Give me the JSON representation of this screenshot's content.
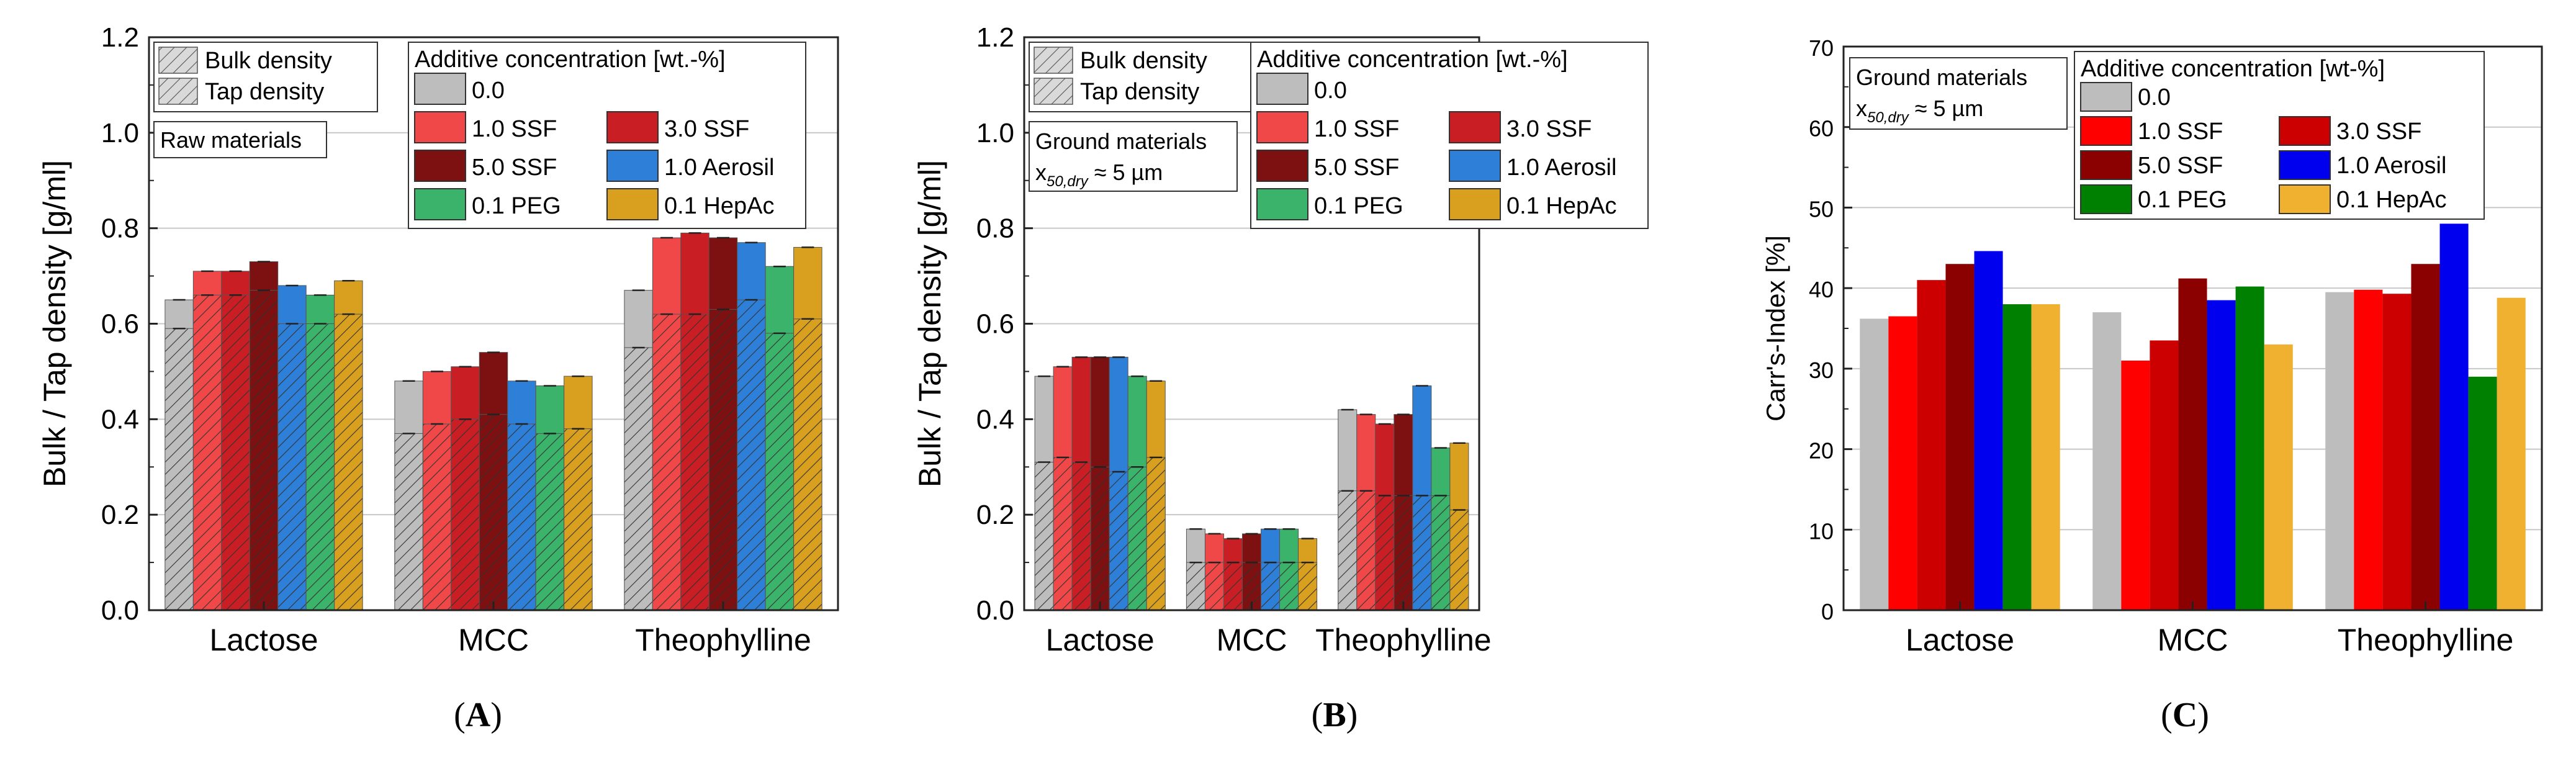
{
  "colors": {
    "c0": "#bdbdbd",
    "c1": "#f04848",
    "c2": "#c81e24",
    "c3": "#7d1010",
    "c4": "#2e7fd8",
    "c5": "#3bb36b",
    "c6": "#d8a01e",
    "C": [
      "#bdbdbd",
      "#ff0000",
      "#cc0000",
      "#8b0000",
      "#0000ee",
      "#008000",
      "#f0b030"
    ]
  },
  "chart_data": [
    {
      "panel": "A",
      "type": "bar",
      "ylabel": "Bulk / Tap density [g/ml]",
      "ylim": [
        0,
        1.2
      ],
      "yticks": [
        "0.0",
        "0.2",
        "0.4",
        "0.6",
        "0.8",
        "1.0",
        "1.2"
      ],
      "categories": [
        "Lactose",
        "MCC",
        "Theophylline"
      ],
      "legend_density": [
        "Bulk density",
        "Tap density"
      ],
      "legend_title": "Additive concentration [wt.-%]",
      "legend_items": [
        "0.0",
        "1.0 SSF",
        "3.0 SSF",
        "5.0 SSF",
        "1.0 Aerosil",
        "0.1 PEG",
        "0.1 HepAc"
      ],
      "note": "Raw materials",
      "series": [
        {
          "name": "0.0",
          "tap": [
            0.65,
            0.48,
            0.67
          ],
          "bulk": [
            0.59,
            0.37,
            0.55
          ]
        },
        {
          "name": "1.0 SSF",
          "tap": [
            0.71,
            0.5,
            0.78
          ],
          "bulk": [
            0.66,
            0.39,
            0.62
          ]
        },
        {
          "name": "3.0 SSF",
          "tap": [
            0.71,
            0.51,
            0.79
          ],
          "bulk": [
            0.66,
            0.4,
            0.62
          ]
        },
        {
          "name": "5.0 SSF",
          "tap": [
            0.73,
            0.54,
            0.78
          ],
          "bulk": [
            0.67,
            0.41,
            0.63
          ]
        },
        {
          "name": "1.0 Aerosil",
          "tap": [
            0.68,
            0.48,
            0.77
          ],
          "bulk": [
            0.6,
            0.39,
            0.65
          ]
        },
        {
          "name": "0.1 PEG",
          "tap": [
            0.66,
            0.47,
            0.72
          ],
          "bulk": [
            0.6,
            0.37,
            0.58
          ]
        },
        {
          "name": "0.1 HepAc",
          "tap": [
            0.69,
            0.49,
            0.76
          ],
          "bulk": [
            0.62,
            0.38,
            0.61
          ]
        }
      ]
    },
    {
      "panel": "B",
      "type": "bar",
      "ylabel": "Bulk / Tap density [g/ml]",
      "ylim": [
        0,
        1.2
      ],
      "yticks": [
        "0.0",
        "0.2",
        "0.4",
        "0.6",
        "0.8",
        "1.0",
        "1.2"
      ],
      "categories": [
        "Lactose",
        "MCC",
        "Theophylline"
      ],
      "legend_density": [
        "Bulk density",
        "Tap density"
      ],
      "legend_title": "Additive concentration [wt.-%]",
      "legend_items": [
        "0.0",
        "1.0 SSF",
        "3.0 SSF",
        "5.0 SSF",
        "1.0 Aerosil",
        "0.1 PEG",
        "0.1 HepAc"
      ],
      "note": "Ground materials",
      "note2": "x",
      "note2_sub": "50,dry",
      "note2_tail": " ≈ 5 µm",
      "series": [
        {
          "name": "0.0",
          "tap": [
            0.49,
            0.17,
            0.42
          ],
          "bulk": [
            0.31,
            0.1,
            0.25
          ]
        },
        {
          "name": "1.0 SSF",
          "tap": [
            0.51,
            0.16,
            0.41
          ],
          "bulk": [
            0.32,
            0.1,
            0.25
          ]
        },
        {
          "name": "3.0 SSF",
          "tap": [
            0.53,
            0.15,
            0.39
          ],
          "bulk": [
            0.31,
            0.1,
            0.24
          ]
        },
        {
          "name": "5.0 SSF",
          "tap": [
            0.53,
            0.16,
            0.41
          ],
          "bulk": [
            0.3,
            0.1,
            0.24
          ]
        },
        {
          "name": "1.0 Aerosil",
          "tap": [
            0.53,
            0.17,
            0.47
          ],
          "bulk": [
            0.29,
            0.1,
            0.24
          ]
        },
        {
          "name": "0.1 PEG",
          "tap": [
            0.49,
            0.17,
            0.34
          ],
          "bulk": [
            0.3,
            0.1,
            0.24
          ]
        },
        {
          "name": "0.1 HepAc",
          "tap": [
            0.48,
            0.15,
            0.35
          ],
          "bulk": [
            0.32,
            0.1,
            0.21
          ]
        }
      ]
    },
    {
      "panel": "C",
      "type": "bar",
      "ylabel": "Carr's-Index [%]",
      "ylim": [
        0,
        70
      ],
      "yticks": [
        "0",
        "10",
        "20",
        "30",
        "40",
        "50",
        "60",
        "70"
      ],
      "categories": [
        "Lactose",
        "MCC",
        "Theophylline"
      ],
      "legend_title": "Additive concentration [wt-%]",
      "legend_items": [
        "0.0",
        "1.0 SSF",
        "3.0 SSF",
        "5.0 SSF",
        "1.0 Aerosil",
        "0.1 PEG",
        "0.1 HepAc"
      ],
      "note": "Ground materials",
      "note2": "x",
      "note2_sub": "50,dry",
      "note2_tail": " ≈ 5 µm",
      "series": [
        {
          "name": "0.0",
          "values": [
            36.2,
            37.0,
            39.5
          ]
        },
        {
          "name": "1.0 SSF",
          "values": [
            36.5,
            31.0,
            39.8
          ]
        },
        {
          "name": "3.0 SSF",
          "values": [
            41.0,
            33.5,
            39.3
          ]
        },
        {
          "name": "5.0 SSF",
          "values": [
            43.0,
            41.2,
            43.0
          ]
        },
        {
          "name": "1.0 Aerosil",
          "values": [
            44.6,
            38.5,
            48.0
          ]
        },
        {
          "name": "0.1 PEG",
          "values": [
            38.0,
            40.2,
            29.0
          ]
        },
        {
          "name": "0.1 HepAc",
          "values": [
            38.0,
            33.0,
            38.8
          ]
        }
      ]
    }
  ],
  "panel_labels": [
    "A",
    "B",
    "C"
  ]
}
